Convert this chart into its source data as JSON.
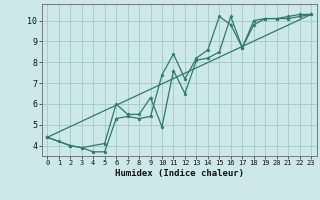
{
  "xlabel": "Humidex (Indice chaleur)",
  "bg_color": "#cce8e8",
  "grid_color": "#aacccc",
  "line_color": "#2d7a6e",
  "xlim": [
    -0.5,
    23.5
  ],
  "ylim": [
    3.5,
    10.8
  ],
  "yticks": [
    4,
    5,
    6,
    7,
    8,
    9,
    10
  ],
  "xticks": [
    0,
    1,
    2,
    3,
    4,
    5,
    6,
    7,
    8,
    9,
    10,
    11,
    12,
    13,
    14,
    15,
    16,
    17,
    18,
    19,
    20,
    21,
    22,
    23
  ],
  "line1_x": [
    0,
    1,
    2,
    3,
    4,
    5,
    6,
    7,
    8,
    9,
    10,
    11,
    12,
    13,
    14,
    15,
    16,
    17,
    18,
    19,
    20,
    21,
    22,
    23
  ],
  "line1_y": [
    4.4,
    4.2,
    4.0,
    3.9,
    3.7,
    3.7,
    5.3,
    5.4,
    5.3,
    5.4,
    7.4,
    8.4,
    7.2,
    8.2,
    8.6,
    10.2,
    9.8,
    8.7,
    10.0,
    10.1,
    10.1,
    10.2,
    10.3,
    10.3
  ],
  "line2_x": [
    0,
    2,
    3,
    5,
    6,
    7,
    8,
    9,
    10,
    11,
    12,
    13,
    14,
    15,
    16,
    17,
    18,
    19,
    20,
    21,
    22,
    23
  ],
  "line2_y": [
    4.4,
    4.0,
    3.9,
    4.1,
    6.0,
    5.5,
    5.5,
    6.3,
    4.9,
    7.6,
    6.5,
    8.1,
    8.2,
    8.5,
    10.2,
    8.7,
    9.8,
    10.1,
    10.1,
    10.1,
    10.2,
    10.3
  ],
  "line3_x": [
    0,
    23
  ],
  "line3_y": [
    4.4,
    10.3
  ]
}
